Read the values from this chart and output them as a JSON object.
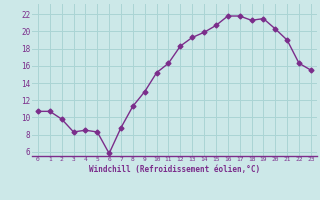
{
  "x": [
    0,
    1,
    2,
    3,
    4,
    5,
    6,
    7,
    8,
    9,
    10,
    11,
    12,
    13,
    14,
    15,
    16,
    17,
    18,
    19,
    20,
    21,
    22,
    23
  ],
  "y": [
    10.7,
    10.7,
    9.8,
    8.3,
    8.5,
    8.3,
    5.8,
    8.8,
    11.3,
    13.0,
    15.2,
    16.3,
    18.3,
    19.3,
    19.9,
    20.7,
    21.8,
    21.8,
    21.3,
    21.5,
    20.3,
    19.0,
    16.3,
    15.5
  ],
  "line_color": "#7B2D8B",
  "marker": "D",
  "marker_size": 2.5,
  "bg_color": "#cce8e8",
  "grid_color": "#aad4d4",
  "xlabel": "Windchill (Refroidissement éolien,°C)",
  "xlabel_color": "#7B2D8B",
  "tick_color": "#7B2D8B",
  "yticks": [
    6,
    8,
    10,
    12,
    14,
    16,
    18,
    20,
    22
  ],
  "ylim": [
    5.5,
    23.2
  ],
  "xlim": [
    -0.5,
    23.5
  ],
  "xticks": [
    0,
    1,
    2,
    3,
    4,
    5,
    6,
    7,
    8,
    9,
    10,
    11,
    12,
    13,
    14,
    15,
    16,
    17,
    18,
    19,
    20,
    21,
    22,
    23
  ],
  "xtick_labels": [
    "0",
    "1",
    "2",
    "3",
    "4",
    "5",
    "6",
    "7",
    "8",
    "9",
    "10",
    "11",
    "12",
    "13",
    "14",
    "15",
    "16",
    "17",
    "18",
    "19",
    "20",
    "21",
    "22",
    "23"
  ]
}
